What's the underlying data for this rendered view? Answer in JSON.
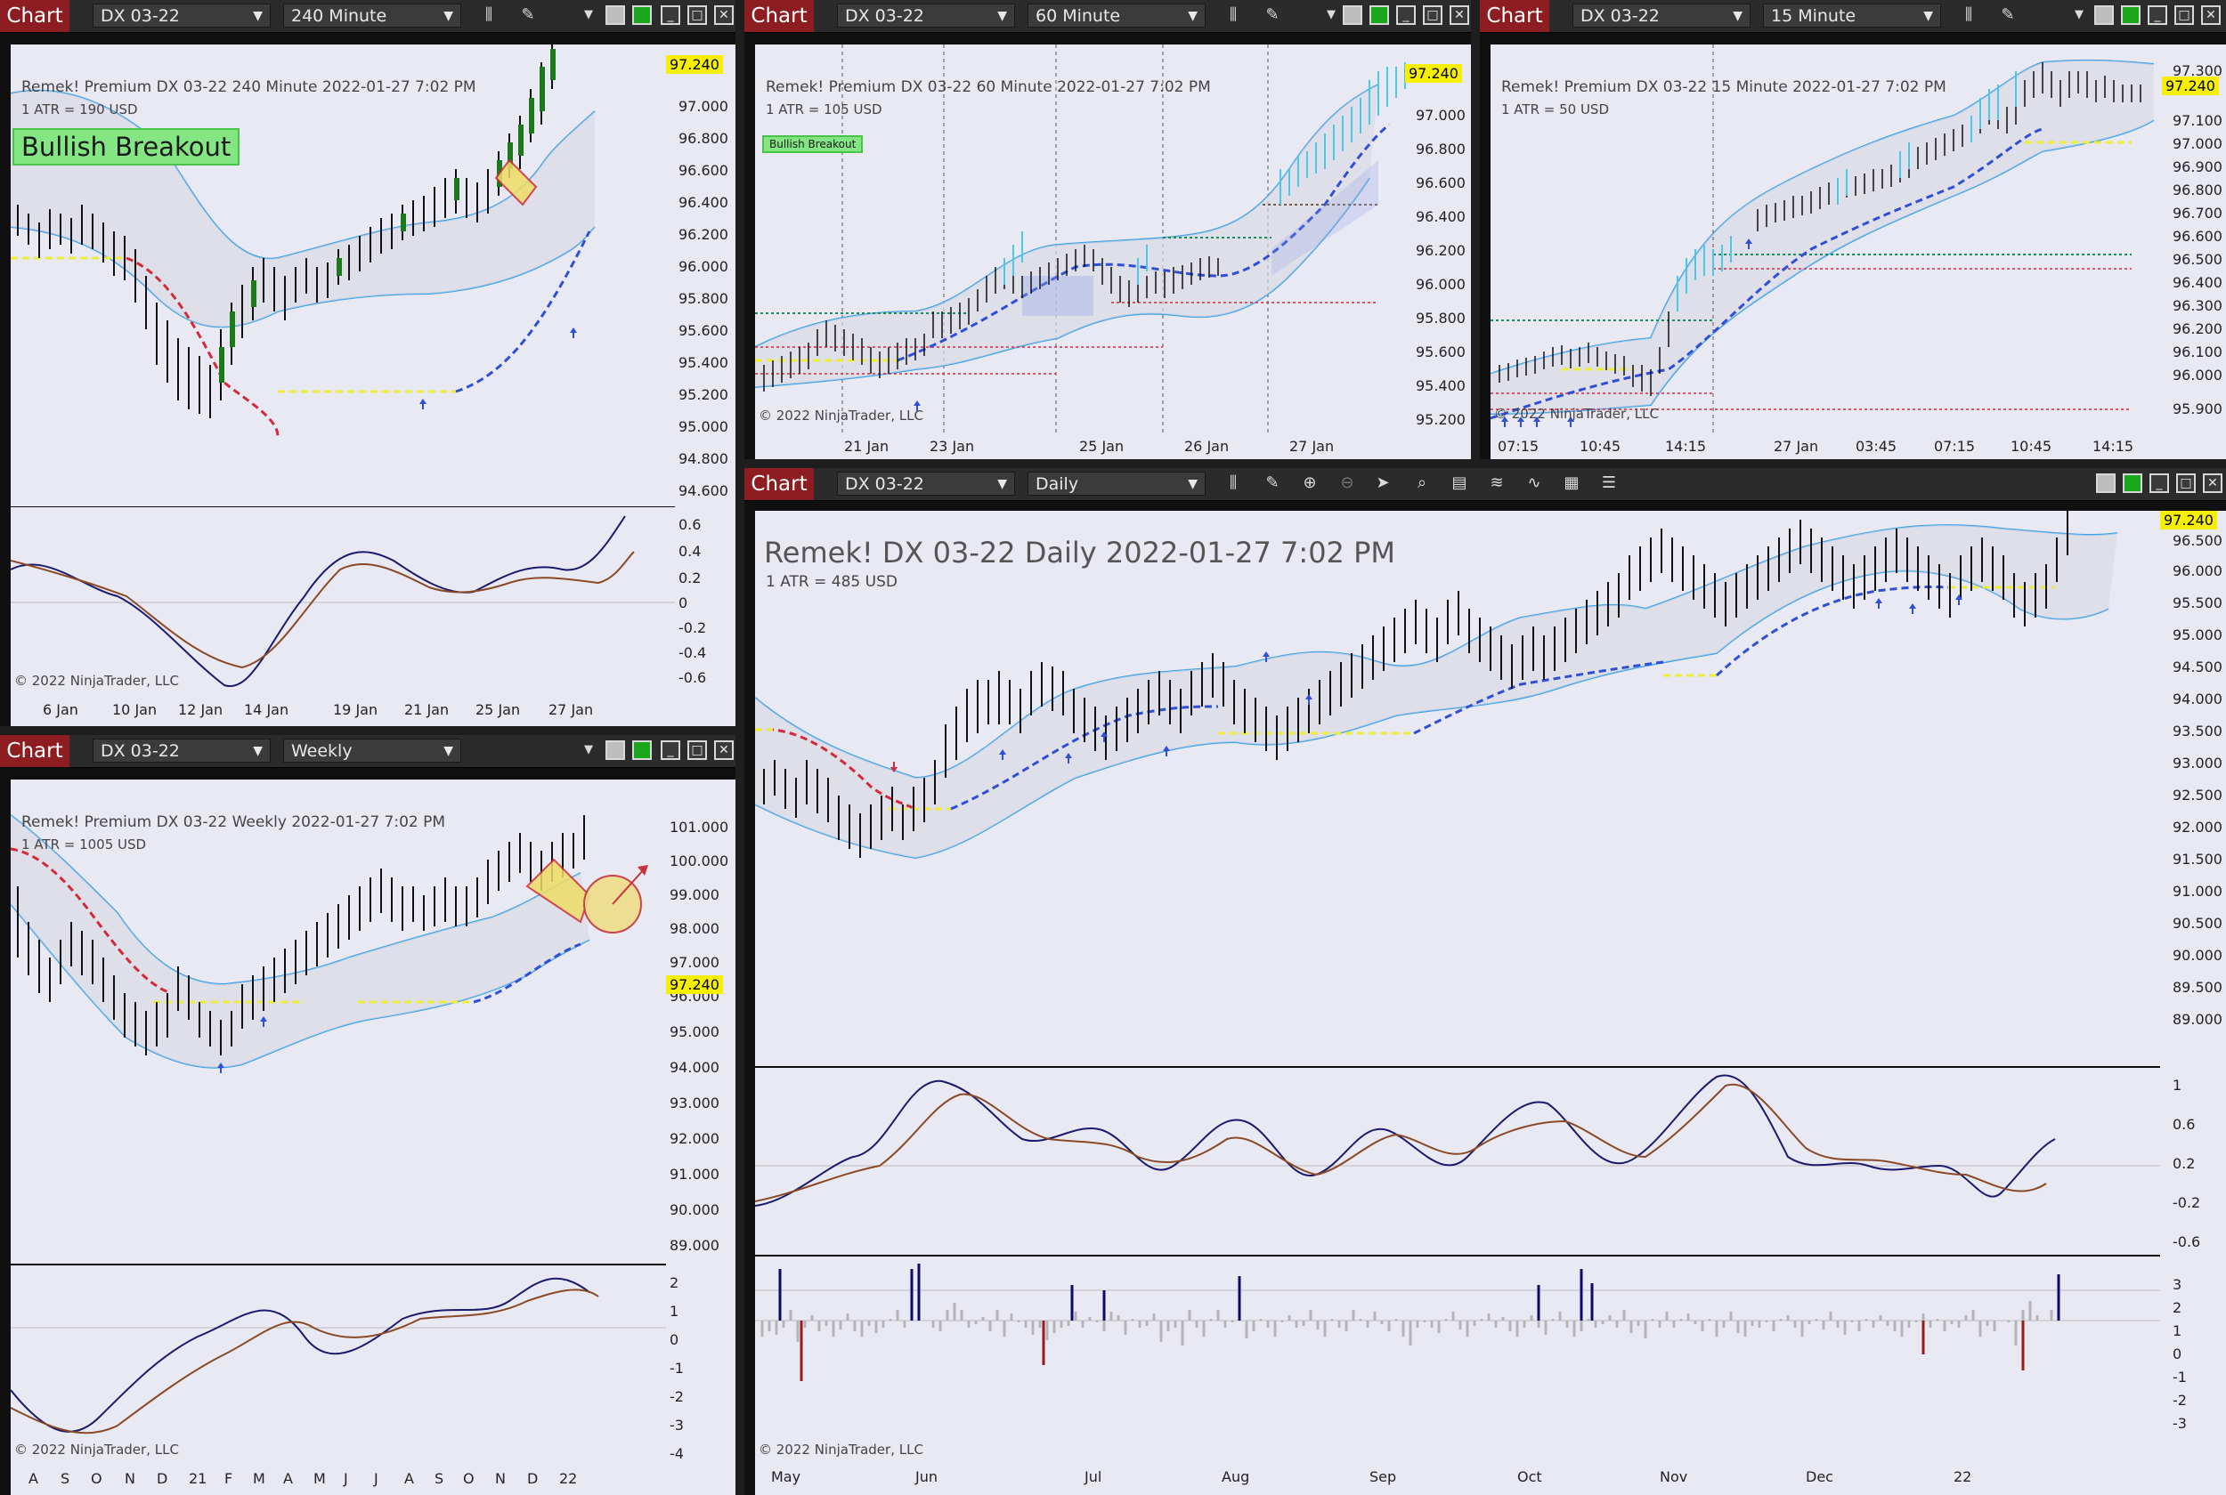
{
  "windows": {
    "w240": {
      "chart_label": "Chart",
      "instrument": "DX 03-22",
      "interval": "240 Minute",
      "title": "Remek!  Premium  DX 03-22  240 Minute  2022-01-27 7:02 PM",
      "atr": "1 ATR = 190 USD",
      "badge": "Bullish Breakout",
      "price_tag": "97.240",
      "copyright": "© 2022 NinjaTrader, LLC",
      "y_labels": [
        "97.000",
        "96.800",
        "96.600",
        "96.400",
        "96.200",
        "96.000",
        "95.800",
        "95.600",
        "95.400",
        "95.200",
        "95.000",
        "94.800",
        "94.600"
      ],
      "osc_labels": [
        "0.6",
        "0.4",
        "0.2",
        "0",
        "-0.2",
        "-0.4",
        "-0.6"
      ],
      "x_labels": [
        "6 Jan",
        "10 Jan",
        "12 Jan",
        "14 Jan",
        "19 Jan",
        "21 Jan",
        "25 Jan",
        "27 Jan"
      ]
    },
    "w60": {
      "chart_label": "Chart",
      "instrument": "DX 03-22",
      "interval": "60 Minute",
      "title": "Remek!  Premium  DX 03-22  60 Minute  2022-01-27 7:02 PM",
      "atr": "1 ATR = 105 USD",
      "badge": "Bullish Breakout",
      "price_tag": "97.240",
      "copyright": "© 2022 NinjaTrader, LLC",
      "y_labels": [
        "97.000",
        "96.800",
        "96.600",
        "96.400",
        "96.200",
        "96.000",
        "95.800",
        "95.600",
        "95.400",
        "95.200"
      ],
      "x_labels": [
        "21 Jan",
        "23 Jan",
        "25 Jan",
        "26 Jan",
        "27 Jan"
      ]
    },
    "w15": {
      "chart_label": "Chart",
      "instrument": "DX 03-22",
      "interval": "15 Minute",
      "title": "Remek!  Premium  DX 03-22  15 Minute  2022-01-27 7:02 PM",
      "atr": "1 ATR = 50 USD",
      "price_tag": "97.240",
      "copyright": "© 2022 NinjaTrader, LLC",
      "y_labels": [
        "97.300",
        "97.100",
        "97.000",
        "96.900",
        "96.800",
        "96.700",
        "96.600",
        "96.500",
        "96.400",
        "96.300",
        "96.200",
        "96.100",
        "96.000",
        "95.900"
      ],
      "x_labels": [
        "07:15",
        "10:45",
        "14:15",
        "27 Jan",
        "03:45",
        "07:15",
        "10:45",
        "14:15"
      ]
    },
    "wWeekly": {
      "chart_label": "Chart",
      "instrument": "DX 03-22",
      "interval": "Weekly",
      "title": "Remek!  Premium  DX 03-22  Weekly  2022-01-27 7:02 PM",
      "atr": "1 ATR = 1005 USD",
      "price_tag": "97.240",
      "copyright": "© 2022 NinjaTrader, LLC",
      "y_labels": [
        "101.000",
        "100.000",
        "99.000",
        "98.000",
        "97.000",
        "96.000",
        "95.000",
        "94.000",
        "93.000",
        "92.000",
        "91.000",
        "90.000",
        "89.000"
      ],
      "osc_labels": [
        "2",
        "1",
        "0",
        "-1",
        "-2",
        "-3",
        "-4"
      ],
      "x_labels": [
        "A",
        "S",
        "O",
        "N",
        "D",
        "21",
        "F",
        "M",
        "A",
        "M",
        "J",
        "J",
        "A",
        "S",
        "O",
        "N",
        "D",
        "22"
      ]
    },
    "wDaily": {
      "chart_label": "Chart",
      "instrument": "DX 03-22",
      "interval": "Daily",
      "title": "Remek!  DX 03-22  Daily  2022-01-27 7:02 PM",
      "atr": "1 ATR = 485 USD",
      "price_tag": "97.240",
      "copyright": "© 2022 NinjaTrader, LLC",
      "y_labels": [
        "96.500",
        "96.000",
        "95.500",
        "95.000",
        "94.500",
        "94.000",
        "93.500",
        "93.000",
        "92.500",
        "92.000",
        "91.500",
        "91.000",
        "90.500",
        "90.000",
        "89.500",
        "89.000"
      ],
      "osc_labels": [
        "1",
        "0.6",
        "0.2",
        "-0.2",
        "-0.6"
      ],
      "hist_labels": [
        "3",
        "2",
        "1",
        "0",
        "-1",
        "-2",
        "-3"
      ],
      "x_labels": [
        "May",
        "Jun",
        "Jul",
        "Aug",
        "Sep",
        "Oct",
        "Nov",
        "Dec",
        "22"
      ]
    }
  }
}
